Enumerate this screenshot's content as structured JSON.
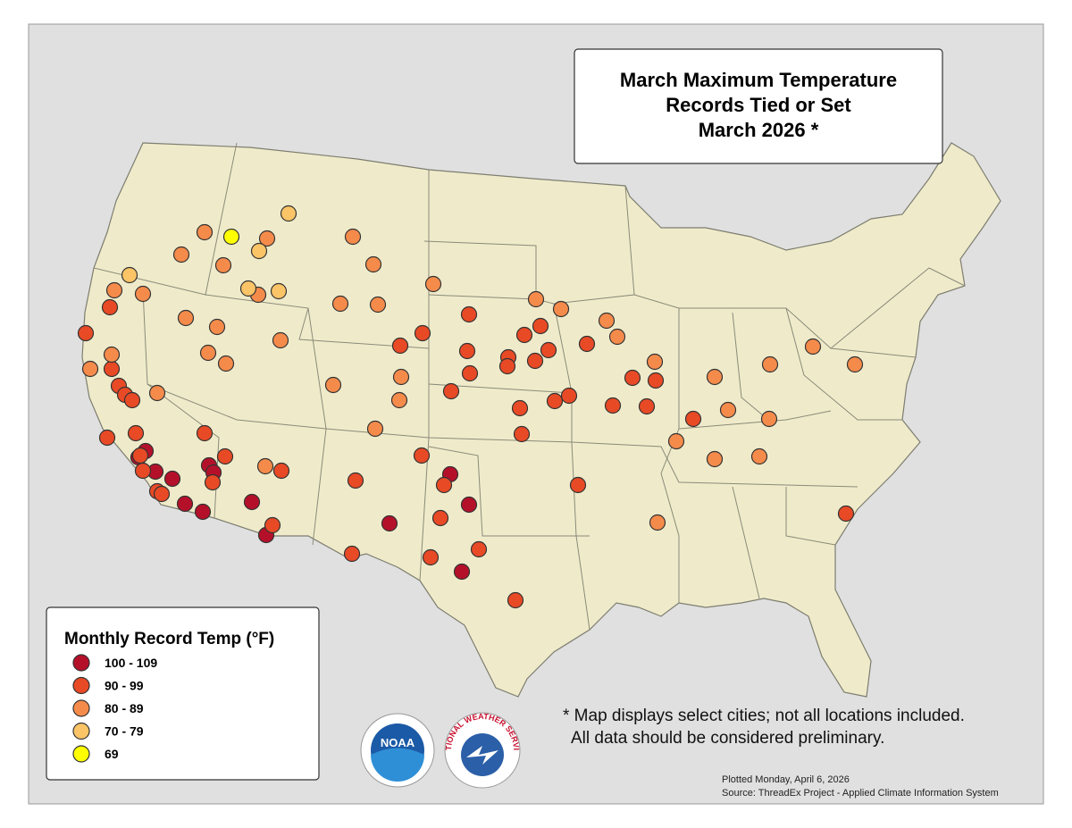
{
  "title_lines": [
    "March Maximum Temperature",
    "Records Tied or Set",
    "March 2026 *"
  ],
  "legend": {
    "title": "Monthly Record Temp (°F)",
    "items": [
      {
        "label": "100 - 109",
        "color": "#b5102a"
      },
      {
        "label": "90 - 99",
        "color": "#e84a26"
      },
      {
        "label": "80 - 89",
        "color": "#f58b4b"
      },
      {
        "label": "70 - 79",
        "color": "#fac467"
      },
      {
        "label": "69",
        "color": "#ffff00"
      }
    ]
  },
  "notes": [
    "* Map displays select cities; not all locations included.",
    "All data should be considered preliminary."
  ],
  "footer": {
    "plotted": "Plotted Monday, April 6, 2026",
    "source": "Source: ThreadEx Project - Applied Climate Information System"
  },
  "logos": {
    "noaa": "NOAA",
    "nws": "NATIONAL WEATHER SERVICE"
  }
}
